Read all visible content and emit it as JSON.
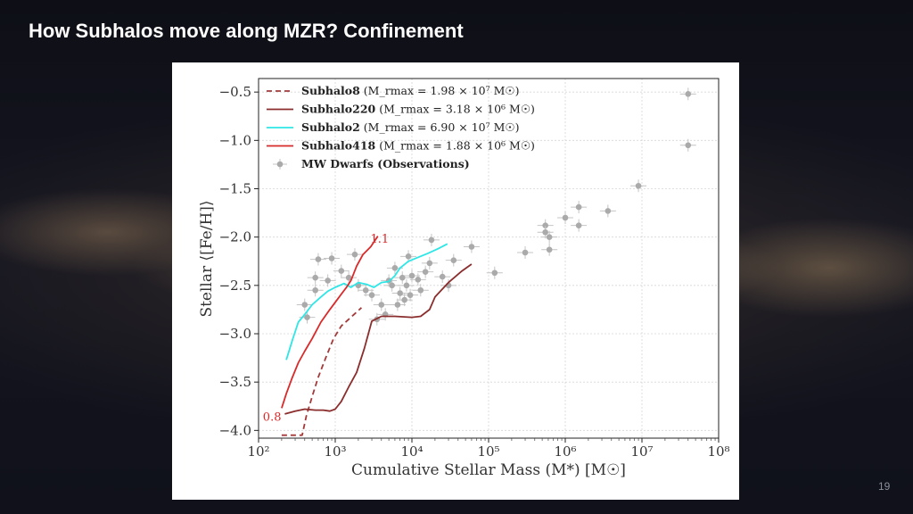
{
  "slide": {
    "title": "How Subhalos move along MZR? Confinement",
    "page_number": "19"
  },
  "chart_data": {
    "type": "line",
    "xlabel": "Cumulative Stellar Mass (M*) [M☉]",
    "ylabel": "Stellar ⟨[Fe/H]⟩",
    "x_scale": "log",
    "xlim": [
      100,
      100000000
    ],
    "ylim": [
      -4.08,
      -0.36
    ],
    "x_ticks": [
      {
        "value": 100,
        "label": "10²"
      },
      {
        "value": 1000,
        "label": "10³"
      },
      {
        "value": 10000,
        "label": "10⁴"
      },
      {
        "value": 100000,
        "label": "10⁵"
      },
      {
        "value": 1000000,
        "label": "10⁶"
      },
      {
        "value": 10000000,
        "label": "10⁷"
      },
      {
        "value": 100000000,
        "label": "10⁸"
      }
    ],
    "y_ticks": [
      {
        "value": -0.5,
        "label": "−0.5"
      },
      {
        "value": -1.0,
        "label": "−1.0"
      },
      {
        "value": -1.5,
        "label": "−1.5"
      },
      {
        "value": -2.0,
        "label": "−2.0"
      },
      {
        "value": -2.5,
        "label": "−2.5"
      },
      {
        "value": -3.0,
        "label": "−3.0"
      },
      {
        "value": -3.5,
        "label": "−3.5"
      },
      {
        "value": -4.0,
        "label": "−4.0"
      }
    ],
    "grid": true,
    "legend_position": "top-left",
    "series": [
      {
        "name": "Subhalo8",
        "legend_extra": "(M_rmax = 1.98 × 10⁷ M☉)",
        "color": "#a33a3a",
        "dash": "dashed",
        "points": [
          [
            200,
            -4.05
          ],
          [
            250,
            -4.05
          ],
          [
            300,
            -4.05
          ],
          [
            370,
            -4.05
          ],
          [
            420,
            -3.85
          ],
          [
            500,
            -3.65
          ],
          [
            600,
            -3.45
          ],
          [
            750,
            -3.25
          ],
          [
            950,
            -3.05
          ],
          [
            1200,
            -2.92
          ],
          [
            1500,
            -2.85
          ],
          [
            2200,
            -2.73
          ]
        ]
      },
      {
        "name": "Subhalo220",
        "legend_extra": "(M_rmax = 3.18 × 10⁶ M☉)",
        "color": "#8b2d2d",
        "dash": "solid",
        "points": [
          [
            220,
            -3.83
          ],
          [
            300,
            -3.8
          ],
          [
            400,
            -3.78
          ],
          [
            550,
            -3.79
          ],
          [
            700,
            -3.79
          ],
          [
            850,
            -3.8
          ],
          [
            1000,
            -3.78
          ],
          [
            1200,
            -3.7
          ],
          [
            1500,
            -3.55
          ],
          [
            1900,
            -3.4
          ],
          [
            2400,
            -3.15
          ],
          [
            3000,
            -2.87
          ],
          [
            4000,
            -2.82
          ],
          [
            6000,
            -2.82
          ],
          [
            10000,
            -2.83
          ],
          [
            13000,
            -2.82
          ],
          [
            17000,
            -2.75
          ],
          [
            20000,
            -2.62
          ],
          [
            30000,
            -2.47
          ],
          [
            45000,
            -2.35
          ],
          [
            60000,
            -2.28
          ]
        ]
      },
      {
        "name": "Subhalo2",
        "legend_extra": "(M_rmax = 6.90 × 10⁷ M☉)",
        "color": "#2ee6e6",
        "dash": "solid",
        "points": [
          [
            230,
            -3.27
          ],
          [
            280,
            -3.05
          ],
          [
            330,
            -2.88
          ],
          [
            400,
            -2.8
          ],
          [
            500,
            -2.7
          ],
          [
            650,
            -2.62
          ],
          [
            800,
            -2.56
          ],
          [
            1000,
            -2.52
          ],
          [
            1300,
            -2.48
          ],
          [
            1600,
            -2.52
          ],
          [
            2000,
            -2.47
          ],
          [
            2600,
            -2.49
          ],
          [
            3200,
            -2.52
          ],
          [
            4000,
            -2.47
          ],
          [
            5000,
            -2.46
          ],
          [
            6000,
            -2.4
          ],
          [
            7000,
            -2.32
          ],
          [
            9000,
            -2.25
          ],
          [
            12000,
            -2.21
          ],
          [
            16000,
            -2.17
          ],
          [
            22000,
            -2.12
          ],
          [
            29000,
            -2.07
          ]
        ]
      },
      {
        "name": "Subhalo418",
        "legend_extra": "(M_rmax = 1.88 × 10⁶ M☉)",
        "color": "#d92a2a",
        "dash": "solid",
        "points": [
          [
            200,
            -3.77
          ],
          [
            230,
            -3.62
          ],
          [
            270,
            -3.47
          ],
          [
            330,
            -3.3
          ],
          [
            400,
            -3.18
          ],
          [
            500,
            -3.05
          ],
          [
            650,
            -2.88
          ],
          [
            850,
            -2.75
          ],
          [
            1100,
            -2.63
          ],
          [
            1400,
            -2.52
          ],
          [
            1600,
            -2.45
          ],
          [
            1900,
            -2.3
          ],
          [
            2300,
            -2.18
          ],
          [
            2900,
            -2.1
          ],
          [
            3600,
            -1.99
          ]
        ]
      }
    ],
    "observations": {
      "name": "MW Dwarfs (Observations)",
      "color": "#aaaaaa",
      "points": [
        [
          40000000,
          -0.52
        ],
        [
          40000000,
          -1.05
        ],
        [
          9000000,
          -1.47
        ],
        [
          3600000,
          -1.73
        ],
        [
          1500000,
          -1.69
        ],
        [
          1500000,
          -1.88
        ],
        [
          1000000,
          -1.8
        ],
        [
          620000,
          -2.0
        ],
        [
          620000,
          -2.13
        ],
        [
          550000,
          -1.88
        ],
        [
          550000,
          -1.95
        ],
        [
          300000,
          -2.16
        ],
        [
          120000,
          -2.37
        ],
        [
          60000,
          -2.1
        ],
        [
          35000,
          -2.24
        ],
        [
          30000,
          -2.5
        ],
        [
          25000,
          -2.41
        ],
        [
          18000,
          -2.03
        ],
        [
          17000,
          -2.27
        ],
        [
          15000,
          -2.36
        ],
        [
          13000,
          -2.55
        ],
        [
          12000,
          -2.44
        ],
        [
          10000,
          -2.4
        ],
        [
          9500,
          -2.6
        ],
        [
          9000,
          -2.2
        ],
        [
          8500,
          -2.5
        ],
        [
          8000,
          -2.65
        ],
        [
          7500,
          -2.42
        ],
        [
          7000,
          -2.58
        ],
        [
          6500,
          -2.7
        ],
        [
          6000,
          -2.32
        ],
        [
          5500,
          -2.5
        ],
        [
          5000,
          -2.45
        ],
        [
          4500,
          -2.8
        ],
        [
          4000,
          -2.7
        ],
        [
          3500,
          -2.85
        ],
        [
          3000,
          -2.6
        ],
        [
          2500,
          -2.55
        ],
        [
          2000,
          -2.5
        ],
        [
          1800,
          -2.18
        ],
        [
          1500,
          -2.42
        ],
        [
          1200,
          -2.35
        ],
        [
          900,
          -2.22
        ],
        [
          800,
          -2.45
        ],
        [
          600,
          -2.23
        ],
        [
          550,
          -2.42
        ],
        [
          550,
          -2.55
        ],
        [
          400,
          -2.7
        ],
        [
          430,
          -2.83
        ]
      ]
    },
    "annotations": [
      {
        "text": "1.1",
        "x": 3800,
        "y": -2.06,
        "color": "#d92a2a"
      },
      {
        "text": "0.8",
        "x": 150,
        "y": -3.9,
        "color": "#d92a2a"
      }
    ]
  }
}
